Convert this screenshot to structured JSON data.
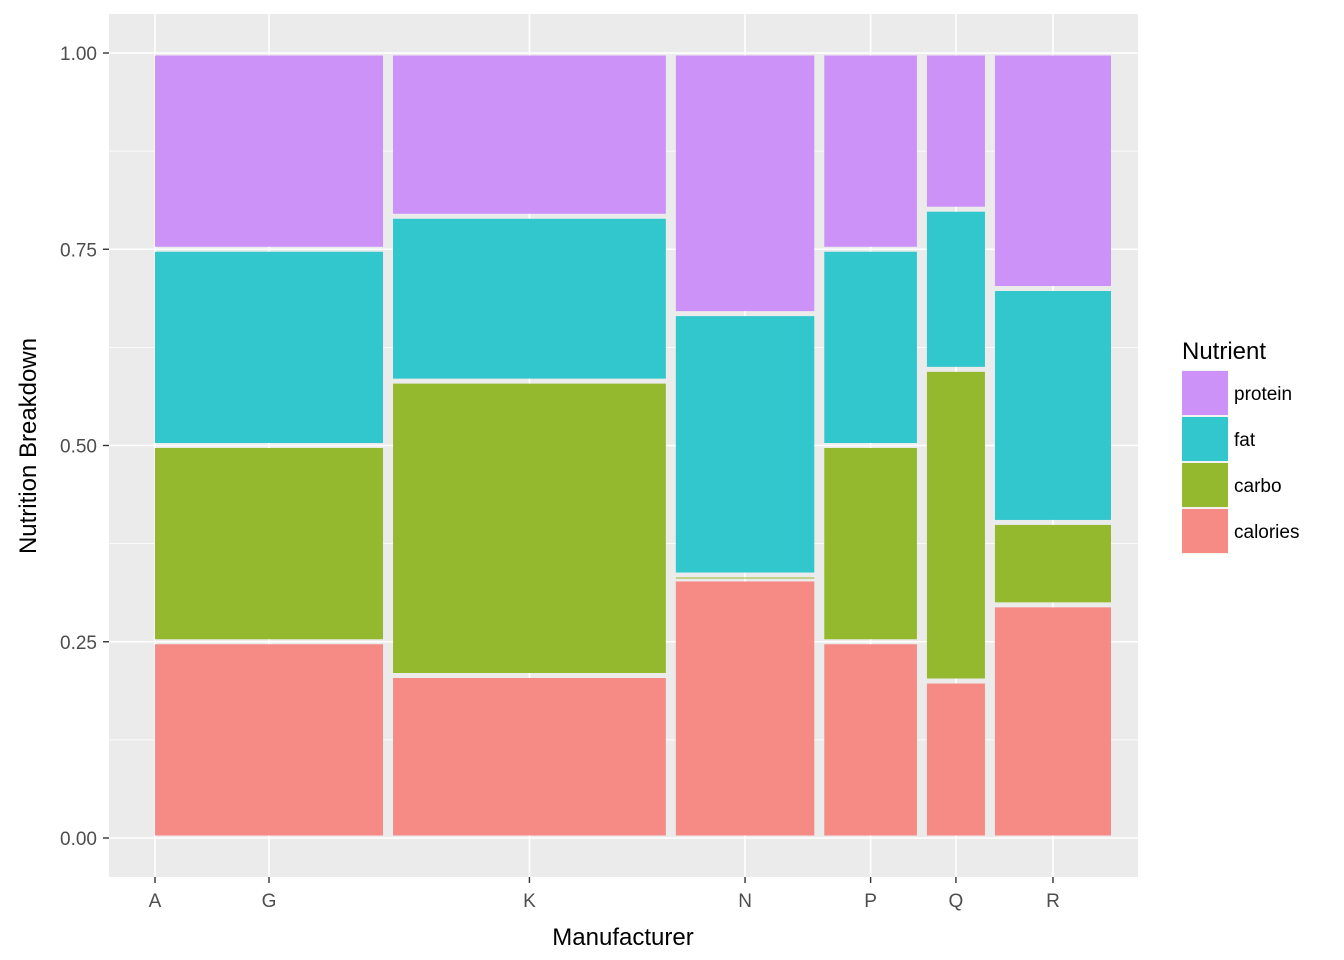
{
  "chart_data": {
    "type": "mosaic",
    "xlabel": "Manufacturer",
    "ylabel": "Nutrition Breakdown",
    "ylim": [
      0,
      1
    ],
    "yticks": [
      "0.00",
      "0.25",
      "0.50",
      "0.75",
      "1.00"
    ],
    "grid": true,
    "legend_position": "right",
    "legend_title": "Nutrient",
    "series_order": [
      "calories",
      "carbo",
      "fat",
      "protein"
    ],
    "legend_order": [
      "protein",
      "fat",
      "carbo",
      "calories"
    ],
    "colors": {
      "protein": "#cc92f8",
      "fat": "#32c6cd",
      "carbo": "#94b92f",
      "calories": "#f68b86"
    },
    "categories": [
      {
        "name": "A",
        "share": 0.0,
        "calories": 0.0,
        "carbo": 0.0,
        "fat": 0.0,
        "protein": 0.0
      },
      {
        "name": "G",
        "share": 0.224,
        "calories": 0.25,
        "carbo": 0.25,
        "fat": 0.25,
        "protein": 0.25
      },
      {
        "name": "K",
        "share": 0.268,
        "calories": 0.207,
        "carbo": 0.375,
        "fat": 0.21,
        "protein": 0.208
      },
      {
        "name": "N",
        "share": 0.136,
        "calories": 0.33,
        "carbo": 0.005,
        "fat": 0.333,
        "protein": 0.332
      },
      {
        "name": "P",
        "share": 0.091,
        "calories": 0.25,
        "carbo": 0.25,
        "fat": 0.25,
        "protein": 0.25
      },
      {
        "name": "Q",
        "share": 0.057,
        "calories": 0.2,
        "carbo": 0.397,
        "fat": 0.204,
        "protein": 0.199
      },
      {
        "name": "R",
        "share": 0.114,
        "calories": 0.297,
        "carbo": 0.105,
        "fat": 0.298,
        "protein": 0.3
      }
    ]
  }
}
